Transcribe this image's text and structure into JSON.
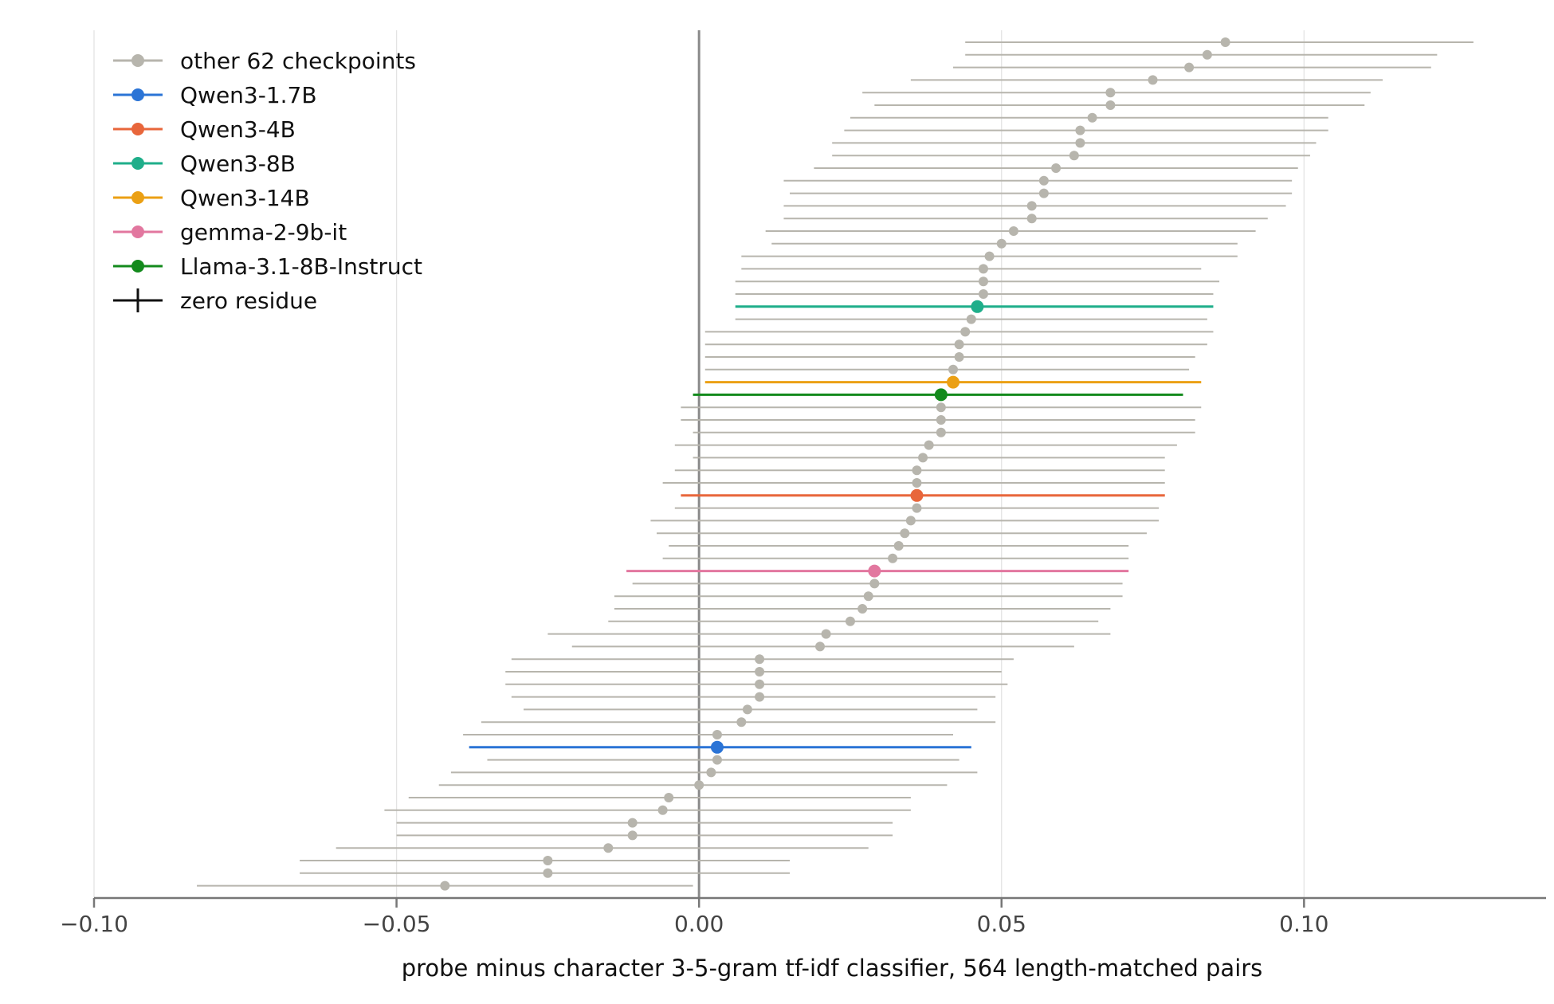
{
  "chart_data": {
    "type": "scatter",
    "xlabel": "probe minus character 3-5-gram tf-idf classifier, 564 length-matched pairs",
    "ylabel": "",
    "title": "",
    "xlim": [
      -0.1,
      0.14
    ],
    "xticks": [
      -0.1,
      -0.05,
      0.0,
      0.05,
      0.1
    ],
    "xtick_labels": [
      "−0.10",
      "−0.05",
      "0.00",
      "0.05",
      "0.10"
    ],
    "grid": "vertical",
    "legend_position": "top-left",
    "reference_line": {
      "x": 0.0,
      "label": "zero residue"
    },
    "colors": {
      "other": "#b7b5ad",
      "Qwen3-1.7B": "#2b74d6",
      "Qwen3-4B": "#e8663b",
      "Qwen3-8B": "#1fae8a",
      "Qwen3-14B": "#eba014",
      "gemma-2-9b-it": "#e2779f",
      "Llama-3.1-8B-Instruct": "#138a1c",
      "zero": "#111111"
    },
    "legend": [
      {
        "label": "other 62 checkpoints",
        "key": "other"
      },
      {
        "label": "Qwen3-1.7B",
        "key": "Qwen3-1.7B"
      },
      {
        "label": "Qwen3-4B",
        "key": "Qwen3-4B"
      },
      {
        "label": "Qwen3-8B",
        "key": "Qwen3-8B"
      },
      {
        "label": "Qwen3-14B",
        "key": "Qwen3-14B"
      },
      {
        "label": "gemma-2-9b-it",
        "key": "gemma-2-9b-it"
      },
      {
        "label": "Llama-3.1-8B-Instruct",
        "key": "Llama-3.1-8B-Instruct"
      },
      {
        "label": "zero residue",
        "key": "zero"
      }
    ],
    "points": [
      {
        "x": 0.087,
        "lo": 0.044,
        "hi": 0.128,
        "group": "other"
      },
      {
        "x": 0.084,
        "lo": 0.044,
        "hi": 0.122,
        "group": "other"
      },
      {
        "x": 0.081,
        "lo": 0.042,
        "hi": 0.121,
        "group": "other"
      },
      {
        "x": 0.075,
        "lo": 0.035,
        "hi": 0.113,
        "group": "other"
      },
      {
        "x": 0.068,
        "lo": 0.027,
        "hi": 0.111,
        "group": "other"
      },
      {
        "x": 0.068,
        "lo": 0.029,
        "hi": 0.11,
        "group": "other"
      },
      {
        "x": 0.065,
        "lo": 0.025,
        "hi": 0.104,
        "group": "other"
      },
      {
        "x": 0.063,
        "lo": 0.024,
        "hi": 0.104,
        "group": "other"
      },
      {
        "x": 0.063,
        "lo": 0.022,
        "hi": 0.102,
        "group": "other"
      },
      {
        "x": 0.062,
        "lo": 0.022,
        "hi": 0.101,
        "group": "other"
      },
      {
        "x": 0.059,
        "lo": 0.019,
        "hi": 0.099,
        "group": "other"
      },
      {
        "x": 0.057,
        "lo": 0.014,
        "hi": 0.098,
        "group": "other"
      },
      {
        "x": 0.057,
        "lo": 0.015,
        "hi": 0.098,
        "group": "other"
      },
      {
        "x": 0.055,
        "lo": 0.014,
        "hi": 0.097,
        "group": "other"
      },
      {
        "x": 0.055,
        "lo": 0.014,
        "hi": 0.094,
        "group": "other"
      },
      {
        "x": 0.052,
        "lo": 0.011,
        "hi": 0.092,
        "group": "other"
      },
      {
        "x": 0.05,
        "lo": 0.012,
        "hi": 0.089,
        "group": "other"
      },
      {
        "x": 0.048,
        "lo": 0.007,
        "hi": 0.089,
        "group": "other"
      },
      {
        "x": 0.047,
        "lo": 0.007,
        "hi": 0.083,
        "group": "other"
      },
      {
        "x": 0.047,
        "lo": 0.006,
        "hi": 0.086,
        "group": "other"
      },
      {
        "x": 0.047,
        "lo": 0.006,
        "hi": 0.085,
        "group": "other"
      },
      {
        "x": 0.046,
        "lo": 0.006,
        "hi": 0.085,
        "group": "Qwen3-8B"
      },
      {
        "x": 0.045,
        "lo": 0.006,
        "hi": 0.084,
        "group": "other"
      },
      {
        "x": 0.044,
        "lo": 0.001,
        "hi": 0.085,
        "group": "other"
      },
      {
        "x": 0.043,
        "lo": 0.001,
        "hi": 0.084,
        "group": "other"
      },
      {
        "x": 0.043,
        "lo": 0.001,
        "hi": 0.082,
        "group": "other"
      },
      {
        "x": 0.042,
        "lo": 0.001,
        "hi": 0.081,
        "group": "other"
      },
      {
        "x": 0.042,
        "lo": 0.001,
        "hi": 0.083,
        "group": "Qwen3-14B"
      },
      {
        "x": 0.04,
        "lo": -0.001,
        "hi": 0.08,
        "group": "Llama-3.1-8B-Instruct"
      },
      {
        "x": 0.04,
        "lo": -0.003,
        "hi": 0.083,
        "group": "other"
      },
      {
        "x": 0.04,
        "lo": -0.003,
        "hi": 0.082,
        "group": "other"
      },
      {
        "x": 0.04,
        "lo": -0.001,
        "hi": 0.082,
        "group": "other"
      },
      {
        "x": 0.038,
        "lo": -0.004,
        "hi": 0.079,
        "group": "other"
      },
      {
        "x": 0.037,
        "lo": -0.001,
        "hi": 0.077,
        "group": "other"
      },
      {
        "x": 0.036,
        "lo": -0.004,
        "hi": 0.077,
        "group": "other"
      },
      {
        "x": 0.036,
        "lo": -0.006,
        "hi": 0.077,
        "group": "other"
      },
      {
        "x": 0.036,
        "lo": -0.003,
        "hi": 0.077,
        "group": "Qwen3-4B"
      },
      {
        "x": 0.036,
        "lo": -0.004,
        "hi": 0.076,
        "group": "other"
      },
      {
        "x": 0.035,
        "lo": -0.008,
        "hi": 0.076,
        "group": "other"
      },
      {
        "x": 0.034,
        "lo": -0.007,
        "hi": 0.074,
        "group": "other"
      },
      {
        "x": 0.033,
        "lo": -0.005,
        "hi": 0.071,
        "group": "other"
      },
      {
        "x": 0.032,
        "lo": -0.006,
        "hi": 0.071,
        "group": "other"
      },
      {
        "x": 0.029,
        "lo": -0.012,
        "hi": 0.071,
        "group": "gemma-2-9b-it"
      },
      {
        "x": 0.029,
        "lo": -0.011,
        "hi": 0.07,
        "group": "other"
      },
      {
        "x": 0.028,
        "lo": -0.014,
        "hi": 0.07,
        "group": "other"
      },
      {
        "x": 0.027,
        "lo": -0.014,
        "hi": 0.068,
        "group": "other"
      },
      {
        "x": 0.025,
        "lo": -0.015,
        "hi": 0.066,
        "group": "other"
      },
      {
        "x": 0.021,
        "lo": -0.025,
        "hi": 0.068,
        "group": "other"
      },
      {
        "x": 0.02,
        "lo": -0.021,
        "hi": 0.062,
        "group": "other"
      },
      {
        "x": 0.01,
        "lo": -0.031,
        "hi": 0.052,
        "group": "other"
      },
      {
        "x": 0.01,
        "lo": -0.032,
        "hi": 0.05,
        "group": "other"
      },
      {
        "x": 0.01,
        "lo": -0.032,
        "hi": 0.051,
        "group": "other"
      },
      {
        "x": 0.01,
        "lo": -0.031,
        "hi": 0.049,
        "group": "other"
      },
      {
        "x": 0.008,
        "lo": -0.029,
        "hi": 0.046,
        "group": "other"
      },
      {
        "x": 0.007,
        "lo": -0.036,
        "hi": 0.049,
        "group": "other"
      },
      {
        "x": 0.003,
        "lo": -0.039,
        "hi": 0.042,
        "group": "other"
      },
      {
        "x": 0.003,
        "lo": -0.038,
        "hi": 0.045,
        "group": "Qwen3-1.7B"
      },
      {
        "x": 0.003,
        "lo": -0.035,
        "hi": 0.043,
        "group": "other"
      },
      {
        "x": 0.002,
        "lo": -0.041,
        "hi": 0.046,
        "group": "other"
      },
      {
        "x": 0.0,
        "lo": -0.043,
        "hi": 0.041,
        "group": "other"
      },
      {
        "x": -0.005,
        "lo": -0.048,
        "hi": 0.035,
        "group": "other"
      },
      {
        "x": -0.006,
        "lo": -0.052,
        "hi": 0.035,
        "group": "other"
      },
      {
        "x": -0.011,
        "lo": -0.05,
        "hi": 0.032,
        "group": "other"
      },
      {
        "x": -0.011,
        "lo": -0.05,
        "hi": 0.032,
        "group": "other"
      },
      {
        "x": -0.015,
        "lo": -0.06,
        "hi": 0.028,
        "group": "other"
      },
      {
        "x": -0.025,
        "lo": -0.066,
        "hi": 0.015,
        "group": "other"
      },
      {
        "x": -0.025,
        "lo": -0.066,
        "hi": 0.015,
        "group": "other"
      },
      {
        "x": -0.042,
        "lo": -0.083,
        "hi": -0.001,
        "group": "other"
      }
    ]
  }
}
